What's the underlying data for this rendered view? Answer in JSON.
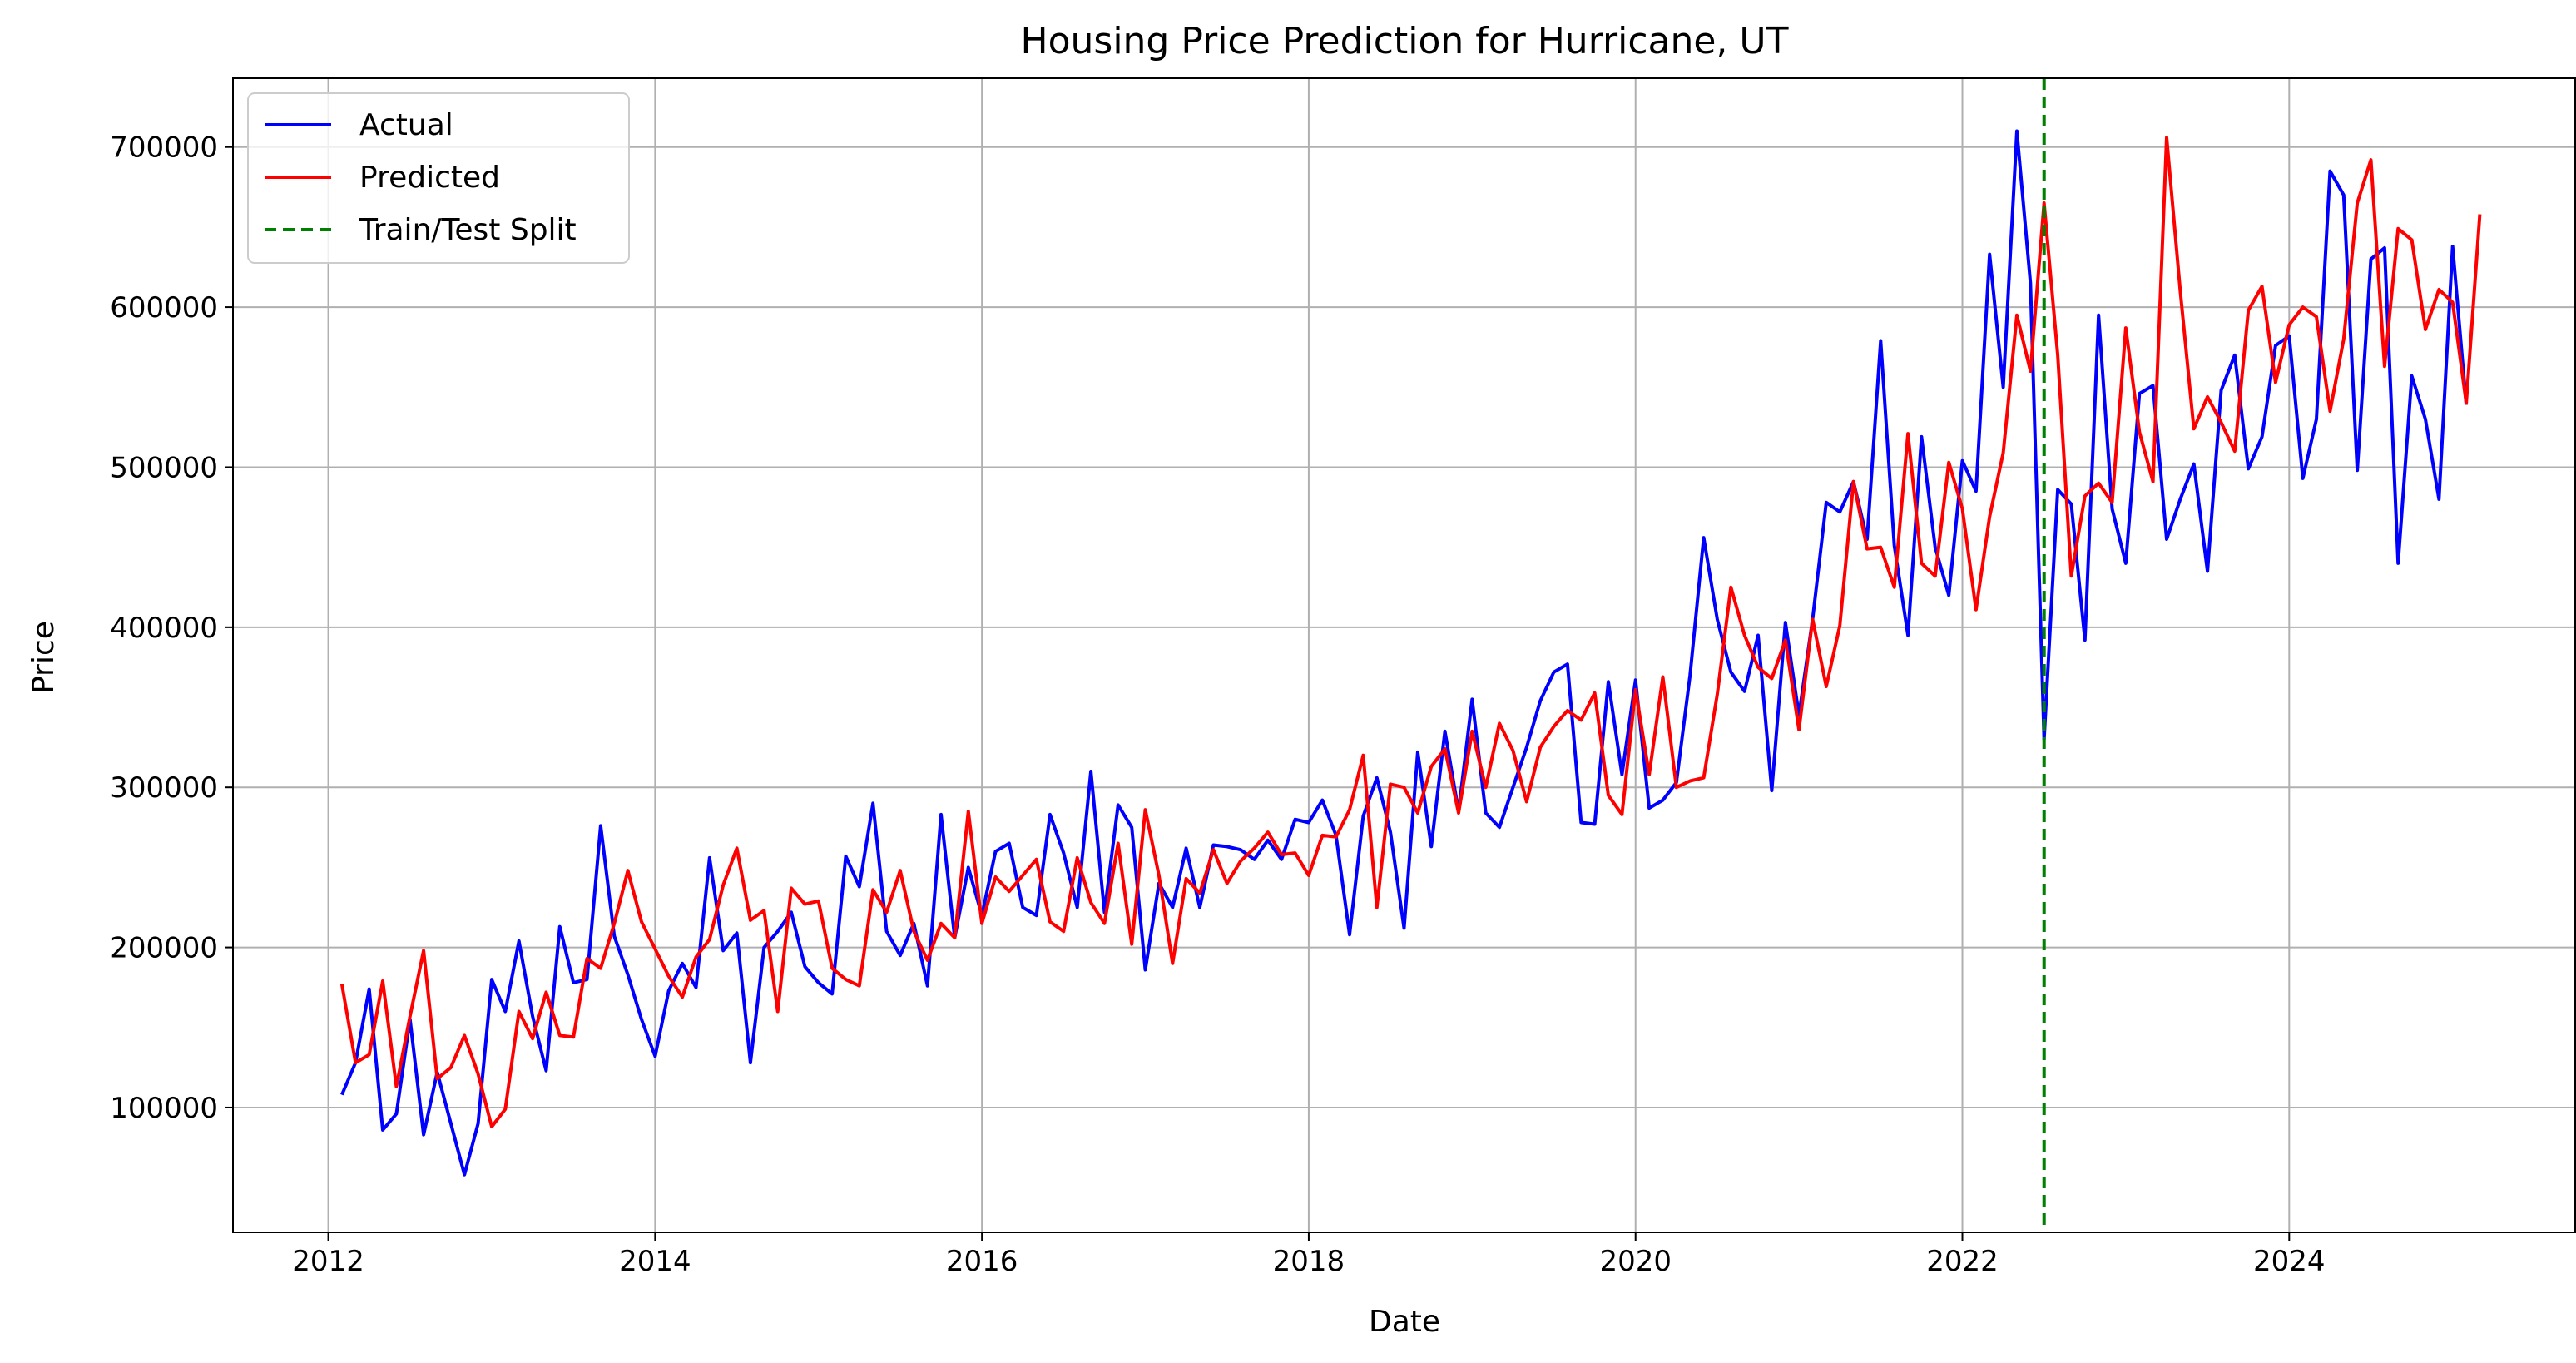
{
  "chart_data": {
    "type": "line",
    "title": "Housing Price Prediction for Hurricane, UT",
    "xlabel": "Date",
    "ylabel": "Price",
    "xlim": [
      "2011-06-01",
      "2025-10-01"
    ],
    "ylim": [
      22000,
      743000
    ],
    "grid": true,
    "legend_position": "top-left",
    "x_ticks": [
      "2012",
      "2014",
      "2016",
      "2018",
      "2020",
      "2022",
      "2024"
    ],
    "y_ticks": [
      100000,
      200000,
      300000,
      400000,
      500000,
      600000,
      700000
    ],
    "x_start": "2012-02-01",
    "x_step_months": 1,
    "split_date": "2022-07-01",
    "series": [
      {
        "name": "Actual",
        "color": "#0000ff",
        "values": [
          108000,
          128000,
          174000,
          86000,
          96000,
          155000,
          83000,
          122000,
          90000,
          58000,
          90000,
          180000,
          160000,
          204000,
          157000,
          123000,
          213000,
          178000,
          180000,
          276000,
          207000,
          183000,
          155000,
          132000,
          173000,
          190000,
          175000,
          256000,
          198000,
          209000,
          128000,
          200000,
          210000,
          222000,
          188000,
          178000,
          171000,
          257000,
          238000,
          290000,
          210000,
          195000,
          215000,
          176000,
          283000,
          206000,
          250000,
          220000,
          260000,
          265000,
          225000,
          220000,
          283000,
          259000,
          225000,
          310000,
          222000,
          289000,
          275000,
          186000,
          240000,
          225000,
          262000,
          225000,
          264000,
          263000,
          261000,
          255000,
          267000,
          255000,
          280000,
          278000,
          292000,
          270000,
          208000,
          282000,
          306000,
          272000,
          212000,
          322000,
          263000,
          335000,
          285000,
          355000,
          284000,
          275000,
          300000,
          325000,
          354000,
          372000,
          377000,
          278000,
          277000,
          366000,
          308000,
          367000,
          287000,
          292000,
          303000,
          370000,
          456000,
          405000,
          372000,
          360000,
          395000,
          298000,
          403000,
          345000,
          405000,
          478000,
          472000,
          491000,
          455000,
          579000,
          451000,
          395000,
          519000,
          450000,
          420000,
          504000,
          485000,
          633000,
          550000,
          710000,
          615000,
          330000,
          486000,
          477000,
          392000,
          595000,
          474000,
          440000,
          546000,
          551000,
          455000,
          480000,
          502000,
          435000,
          548000,
          570000,
          499000,
          519000,
          576000,
          582000,
          493000,
          530000,
          685000,
          670000,
          498000,
          630000,
          637000,
          440000,
          557000,
          530000,
          480000,
          638000,
          539000
        ]
      },
      {
        "name": "Predicted",
        "color": "#ff0000",
        "values": [
          177000,
          128000,
          133000,
          179000,
          113000,
          157000,
          198000,
          118000,
          125000,
          145000,
          121000,
          88000,
          99000,
          160000,
          143000,
          172000,
          145000,
          144000,
          193000,
          187000,
          215000,
          248000,
          216000,
          199000,
          182000,
          169000,
          194000,
          205000,
          239000,
          262000,
          217000,
          223000,
          160000,
          237000,
          227000,
          229000,
          187000,
          180000,
          176000,
          236000,
          222000,
          248000,
          210000,
          192000,
          215000,
          206000,
          285000,
          215000,
          244000,
          235000,
          245000,
          255000,
          216000,
          210000,
          256000,
          228000,
          215000,
          265000,
          202000,
          286000,
          245000,
          190000,
          243000,
          234000,
          261000,
          240000,
          254000,
          262000,
          272000,
          258000,
          259000,
          245000,
          270000,
          269000,
          286000,
          320000,
          225000,
          302000,
          300000,
          284000,
          313000,
          324000,
          284000,
          335000,
          300000,
          340000,
          323000,
          291000,
          325000,
          338000,
          348000,
          342000,
          359000,
          295000,
          283000,
          361000,
          308000,
          369000,
          300000,
          304000,
          306000,
          358000,
          425000,
          395000,
          375000,
          368000,
          392000,
          336000,
          405000,
          363000,
          401000,
          491000,
          449000,
          450000,
          425000,
          521000,
          440000,
          432000,
          503000,
          474000,
          411000,
          469000,
          509000,
          595000,
          560000,
          665000,
          570000,
          432000,
          482000,
          490000,
          478000,
          587000,
          522000,
          491000,
          706000,
          610000,
          524000,
          544000,
          528000,
          510000,
          598000,
          613000,
          553000,
          589000,
          600000,
          594000,
          535000,
          580000,
          665000,
          692000,
          563000,
          649000,
          642000,
          586000,
          611000,
          603000,
          540000,
          658000
        ]
      },
      {
        "name": "Train/Test Split",
        "color": "#008000",
        "style": "dashed"
      }
    ]
  }
}
